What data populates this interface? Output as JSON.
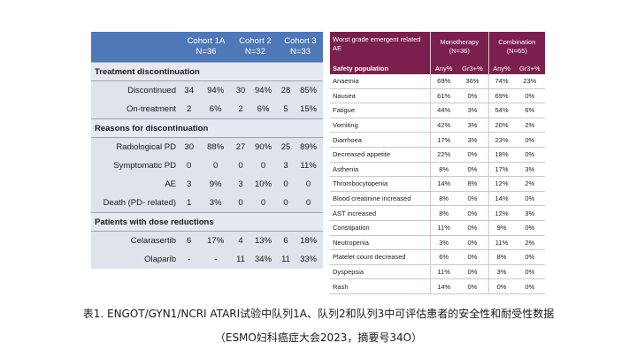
{
  "left_table": {
    "headers": [
      {
        "name": "Cohort 1A",
        "n": "N=36"
      },
      {
        "name": "Cohort 2",
        "n": "N=32"
      },
      {
        "name": "Cohort 3",
        "n": "N=33"
      }
    ],
    "sections": [
      {
        "title": "Treatment discontinuation",
        "rows": [
          {
            "label": "Discontinued",
            "values": [
              "34",
              "94%",
              "30",
              "94%",
              "28",
              "85%"
            ]
          },
          {
            "label": "On-treatment",
            "values": [
              "2",
              "6%",
              "2",
              "6%",
              "5",
              "15%"
            ]
          }
        ]
      },
      {
        "title": "Reasons for discontinuation",
        "rows": [
          {
            "label": "Radiological PD",
            "values": [
              "30",
              "88%",
              "27",
              "90%",
              "25",
              "89%"
            ]
          },
          {
            "label": "Symptomatic PD",
            "values": [
              "0",
              "0",
              "0",
              "0",
              "3",
              "11%"
            ]
          },
          {
            "label": "AE",
            "values": [
              "3",
              "9%",
              "3",
              "10%",
              "0",
              "0"
            ]
          },
          {
            "label": "Death (PD- related)",
            "values": [
              "1",
              "3%",
              "0",
              "0",
              "0",
              "0"
            ]
          }
        ]
      },
      {
        "title": "Patients with dose reductions",
        "rows": [
          {
            "label": "Celarasertib",
            "values": [
              "6",
              "17%",
              "4",
              "13%",
              "6",
              "18%"
            ]
          },
          {
            "label": "Olaparib",
            "values": [
              "-",
              "-",
              "11",
              "34%",
              "11",
              "33%"
            ]
          }
        ]
      }
    ]
  },
  "right_table": {
    "header_label": "Worst grade emergent related AE",
    "groups": [
      {
        "name": "Monotherapy",
        "n": "(N=36)"
      },
      {
        "name": "Combination",
        "n": "(N=65)"
      }
    ],
    "subheader_label": "Safety population",
    "subheaders": [
      "Any%",
      "Gr3+%",
      "Any%",
      "Gr3+%"
    ],
    "rows": [
      {
        "label": "Anaemia",
        "values": [
          "69%",
          "36%",
          "74%",
          "23%"
        ]
      },
      {
        "label": "Nausea",
        "values": [
          "61%",
          "0%",
          "69%",
          "0%"
        ]
      },
      {
        "label": "Fatigue",
        "values": [
          "44%",
          "3%",
          "54%",
          "6%"
        ]
      },
      {
        "label": "Vomiting",
        "values": [
          "42%",
          "3%",
          "20%",
          "2%"
        ]
      },
      {
        "label": "Diarrhoea",
        "values": [
          "17%",
          "3%",
          "23%",
          "0%"
        ]
      },
      {
        "label": "Decreased appetite",
        "values": [
          "22%",
          "0%",
          "18%",
          "0%"
        ]
      },
      {
        "label": "Asthenia",
        "values": [
          "8%",
          "0%",
          "17%",
          "3%"
        ]
      },
      {
        "label": "Thrombocytopenia",
        "values": [
          "14%",
          "8%",
          "12%",
          "2%"
        ]
      },
      {
        "label": "Blood creatinine increased",
        "values": [
          "8%",
          "0%",
          "14%",
          "0%"
        ]
      },
      {
        "label": "AST increased",
        "values": [
          "8%",
          "0%",
          "12%",
          "3%"
        ]
      },
      {
        "label": "Constipation",
        "values": [
          "11%",
          "0%",
          "9%",
          "0%"
        ]
      },
      {
        "label": "Neutropenia",
        "values": [
          "3%",
          "0%",
          "11%",
          "2%"
        ]
      },
      {
        "label": "Platelet count decreased",
        "values": [
          "6%",
          "0%",
          "8%",
          "0%"
        ]
      },
      {
        "label": "Dyspepsia",
        "values": [
          "11%",
          "0%",
          "3%",
          "0%"
        ]
      },
      {
        "label": "Rash",
        "values": [
          "14%",
          "0%",
          "0%",
          "0%"
        ]
      }
    ]
  },
  "caption": {
    "line1": "表1. ENGOT/GYN1/NCRI ATARI试验中队列1A、队列2和队列3中可评估患者的安全性和耐受性数据",
    "line2": "（ESMO妇科癌症大会2023，摘要号34O）"
  },
  "colors": {
    "left_header": "#4e78b8",
    "left_body": "#dfe3ec",
    "right_header": "#7b1f4e"
  }
}
